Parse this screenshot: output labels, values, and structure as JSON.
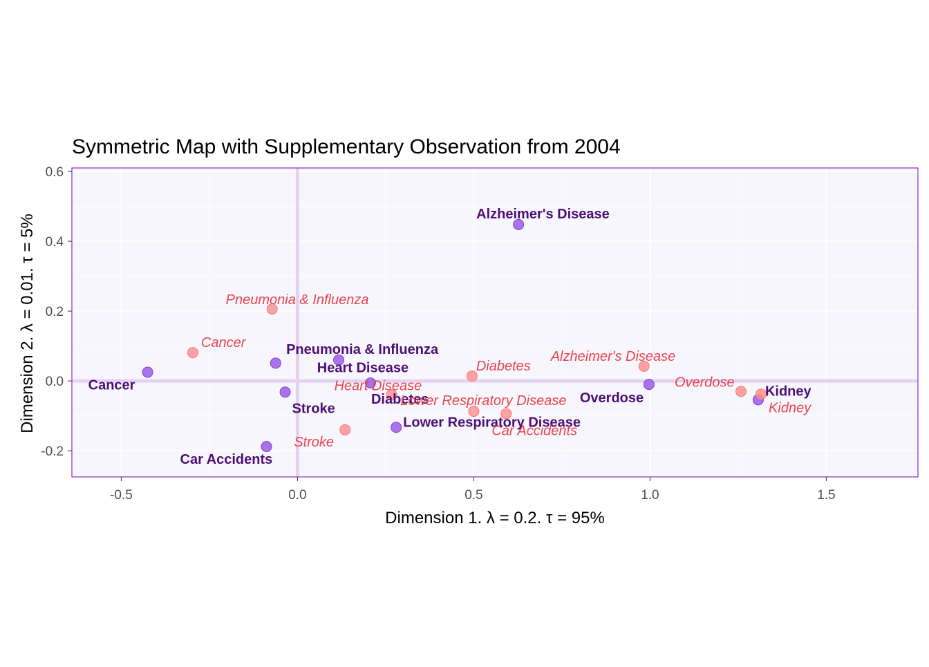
{
  "chart_data": {
    "type": "scatter",
    "title": "Symmetric Map with Supplementary Observation from 2004",
    "xlabel": "Dimension 1.   λ = 0.2.  τ = 95%",
    "ylabel": "Dimension 2.   λ = 0.01.  τ = 5%",
    "xlim": [
      -0.64,
      1.76
    ],
    "ylim": [
      -0.275,
      0.61
    ],
    "x_ticks": [
      -0.5,
      0.0,
      0.5,
      1.0,
      1.5
    ],
    "x_tick_labels": [
      "-0.5",
      "0.0",
      "0.5",
      "1.0",
      "1.5"
    ],
    "y_ticks": [
      -0.2,
      0.0,
      0.2,
      0.4,
      0.6
    ],
    "y_tick_labels": [
      "-0.2",
      "0.0",
      "0.2",
      "0.4",
      "0.6"
    ],
    "grid": true,
    "colors": {
      "panel_bg": "#f8f6fd",
      "panel_border": "#8a2bbd",
      "grid": "#ffffff",
      "zero_line": "#e3d3f2",
      "active_point": "#9d5ce6",
      "active_label": "#4b0f74",
      "supp_point": "#ff8c8c",
      "supp_label": "#e8444e"
    },
    "series": [
      {
        "name": "",
        "style": "active",
        "points": [
          {
            "label": "Cancer",
            "x": -0.425,
            "y": 0.025
          },
          {
            "label": "Heart Disease",
            "x": -0.062,
            "y": 0.051
          },
          {
            "label": "Stroke",
            "x": -0.035,
            "y": -0.032
          },
          {
            "label": "Car Accidents",
            "x": -0.088,
            "y": -0.188
          },
          {
            "label": "Pneumonia & Influenza",
            "x": 0.117,
            "y": 0.06
          },
          {
            "label": "Diabetes",
            "x": 0.207,
            "y": -0.006
          },
          {
            "label": "Lower Respiratory Disease",
            "x": 0.28,
            "y": -0.133
          },
          {
            "label": "Alzheimer's Disease",
            "x": 0.627,
            "y": 0.448
          },
          {
            "label": "Overdose",
            "x": 0.997,
            "y": -0.01
          },
          {
            "label": "Kidney",
            "x": 1.307,
            "y": -0.054
          }
        ]
      },
      {
        "name": "",
        "style": "supplementary",
        "points": [
          {
            "label": "Cancer",
            "x": -0.297,
            "y": 0.081
          },
          {
            "label": "Pneumonia & Influenza",
            "x": -0.072,
            "y": 0.206
          },
          {
            "label": "Heart Disease",
            "x": 0.267,
            "y": -0.04
          },
          {
            "label": "Stroke",
            "x": 0.135,
            "y": -0.14
          },
          {
            "label": "Diabetes",
            "x": 0.495,
            "y": 0.014
          },
          {
            "label": "Lower Respiratory Disease",
            "x": 0.5,
            "y": -0.087
          },
          {
            "label": "Car Accidents",
            "x": 0.592,
            "y": -0.094
          },
          {
            "label": "Alzheimer's Disease",
            "x": 0.983,
            "y": 0.042
          },
          {
            "label": "Overdose",
            "x": 1.258,
            "y": -0.03
          },
          {
            "label": "Kidney",
            "x": 1.315,
            "y": -0.038
          }
        ]
      }
    ]
  }
}
